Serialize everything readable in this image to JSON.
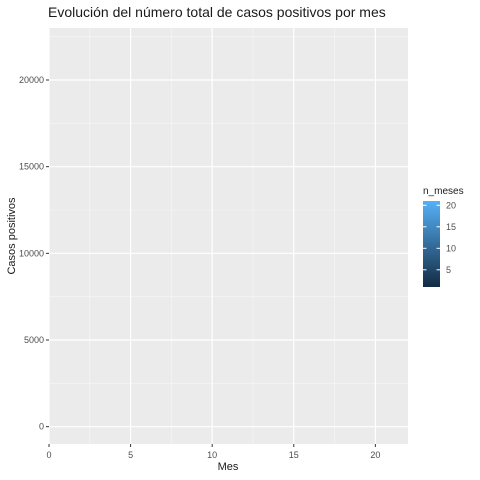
{
  "chart_data": {
    "type": "bar",
    "title": "Evolución del número total de casos positivos por mes",
    "xlabel": "Mes",
    "ylabel": "Casos positivos",
    "xlim": [
      0,
      22
    ],
    "ylim": [
      -1000,
      23000
    ],
    "x_ticks": [
      0,
      5,
      10,
      15,
      20
    ],
    "y_ticks": [
      0,
      5000,
      10000,
      15000,
      20000
    ],
    "series": [],
    "grid": true,
    "legend": {
      "title": "n_meses",
      "type": "colorbar",
      "range": [
        1,
        21
      ],
      "ticks": [
        5,
        10,
        15,
        20
      ],
      "colors": [
        "#132B43",
        "#56B1F7"
      ],
      "position": "right"
    }
  }
}
